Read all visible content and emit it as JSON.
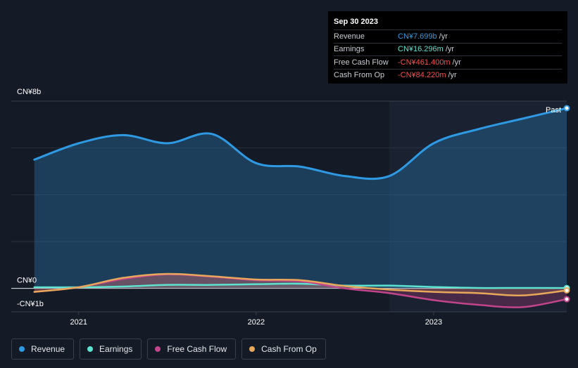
{
  "tooltip": {
    "date": "Sep 30 2023",
    "rows": [
      {
        "label": "Revenue",
        "value": "CN¥7.699b",
        "unit": "/yr",
        "color": "#2f9ae4"
      },
      {
        "label": "Earnings",
        "value": "CN¥16.296m",
        "unit": "/yr",
        "color": "#5ee3d0"
      },
      {
        "label": "Free Cash Flow",
        "value": "-CN¥461.400m",
        "unit": "/yr",
        "color": "#ff4d4d"
      },
      {
        "label": "Cash From Op",
        "value": "-CN¥84.220m",
        "unit": "/yr",
        "color": "#ff4d4d"
      }
    ]
  },
  "past_label": "Past",
  "legend": [
    {
      "label": "Revenue",
      "color": "#2f9ae4"
    },
    {
      "label": "Earnings",
      "color": "#5ee3d0"
    },
    {
      "label": "Free Cash Flow",
      "color": "#c2448a"
    },
    {
      "label": "Cash From Op",
      "color": "#e8a85c"
    }
  ],
  "chart_data": {
    "type": "area",
    "y_axis_labels": [
      "CN¥8b",
      "CN¥0",
      "-CN¥1b"
    ],
    "x_tick_labels": [
      "2021",
      "2022",
      "2023"
    ],
    "x_ticks": [
      2021.0,
      2022.0,
      2023.0
    ],
    "xlim": [
      2020.62,
      2023.75
    ],
    "ylim": [
      -1.0,
      8.0
    ],
    "y_unit": "CN¥ billions",
    "highlight_start": 2022.75,
    "grid": true,
    "series": [
      {
        "name": "Revenue",
        "color": "#2f9ae4",
        "x": [
          2020.75,
          2021.0,
          2021.25,
          2021.5,
          2021.75,
          2022.0,
          2022.25,
          2022.5,
          2022.75,
          2023.0,
          2023.25,
          2023.5,
          2023.75
        ],
        "y": [
          5.5,
          6.2,
          6.55,
          6.2,
          6.6,
          5.35,
          5.2,
          4.8,
          4.8,
          6.2,
          6.8,
          7.25,
          7.699
        ]
      },
      {
        "name": "Earnings",
        "color": "#5ee3d0",
        "x": [
          2020.75,
          2021.0,
          2021.25,
          2021.5,
          2021.75,
          2022.0,
          2022.25,
          2022.5,
          2022.75,
          2023.0,
          2023.25,
          2023.5,
          2023.75
        ],
        "y": [
          0.05,
          0.05,
          0.08,
          0.15,
          0.15,
          0.18,
          0.2,
          0.12,
          0.12,
          0.06,
          0.02,
          0.02,
          0.016
        ]
      },
      {
        "name": "Free Cash Flow",
        "color": "#c2448a",
        "x": [
          2020.75,
          2021.0,
          2021.25,
          2021.5,
          2021.75,
          2022.0,
          2022.25,
          2022.5,
          2022.75,
          2023.0,
          2023.25,
          2023.5,
          2023.75
        ],
        "y": [
          -0.15,
          0.05,
          0.4,
          0.6,
          0.5,
          0.35,
          0.3,
          0.0,
          -0.2,
          -0.5,
          -0.7,
          -0.8,
          -0.461
        ]
      },
      {
        "name": "Cash From Op",
        "color": "#e8a85c",
        "x": [
          2020.75,
          2021.0,
          2021.25,
          2021.5,
          2021.75,
          2022.0,
          2022.25,
          2022.5,
          2022.75,
          2023.0,
          2023.25,
          2023.5,
          2023.75
        ],
        "y": [
          -0.15,
          0.05,
          0.45,
          0.62,
          0.52,
          0.38,
          0.35,
          0.1,
          -0.05,
          -0.15,
          -0.2,
          -0.3,
          -0.084
        ]
      }
    ]
  }
}
